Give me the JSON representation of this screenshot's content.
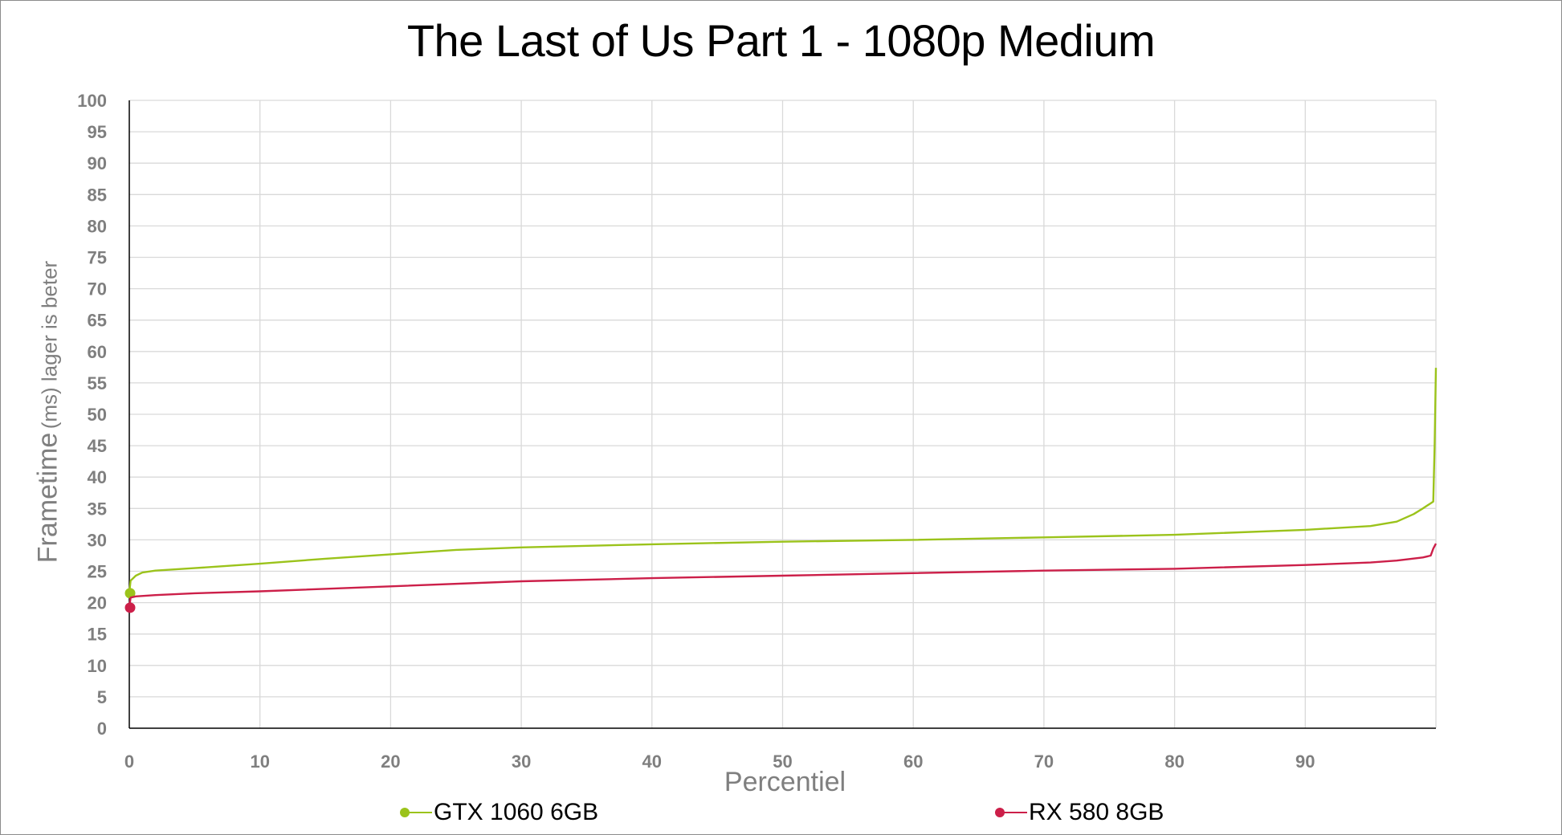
{
  "title": "The Last of Us Part 1 - 1080p Medium",
  "yaxis": {
    "title_main": "Frametime",
    "title_sub": "(ms) lager is beter",
    "ticks": [
      0,
      5,
      10,
      15,
      20,
      25,
      30,
      35,
      40,
      45,
      50,
      55,
      60,
      65,
      70,
      75,
      80,
      85,
      90,
      95,
      100
    ]
  },
  "xaxis": {
    "title": "Percentiel",
    "ticks": [
      0,
      10,
      20,
      30,
      40,
      50,
      60,
      70,
      80,
      90
    ]
  },
  "legend": [
    {
      "label": "GTX 1060 6GB",
      "color": "#9bc31b"
    },
    {
      "label": "RX 580 8GB",
      "color": "#cc1f49"
    }
  ],
  "chart_data": {
    "type": "line",
    "title": "The Last of Us Part 1 - 1080p Medium",
    "xlabel": "Percentiel",
    "ylabel": "Frametime (ms) lager is beter",
    "xlim": [
      0,
      100
    ],
    "ylim": [
      0,
      100
    ],
    "grid": true,
    "legend_position": "bottom",
    "series": [
      {
        "name": "GTX 1060 6GB",
        "color": "#9bc31b",
        "x": [
          0,
          0.1,
          0.5,
          1,
          2,
          5,
          10,
          15,
          20,
          25,
          30,
          40,
          50,
          60,
          70,
          80,
          90,
          95,
          97,
          98.3,
          99.0,
          99.8,
          99.9,
          100
        ],
        "y": [
          21.5,
          23.5,
          24.3,
          24.8,
          25.1,
          25.5,
          26.2,
          27.0,
          27.7,
          28.4,
          28.8,
          29.3,
          29.7,
          30.0,
          30.4,
          30.8,
          31.6,
          32.2,
          32.9,
          34.1,
          35.0,
          36.1,
          45,
          57.4
        ]
      },
      {
        "name": "RX 580 8GB",
        "color": "#cc1f49",
        "x": [
          0,
          0.1,
          0.5,
          2,
          5,
          10,
          20,
          30,
          40,
          50,
          60,
          70,
          80,
          90,
          95,
          97,
          99.0,
          99.6,
          99.8,
          100
        ],
        "y": [
          19.2,
          20.8,
          21.0,
          21.2,
          21.5,
          21.8,
          22.6,
          23.4,
          23.9,
          24.3,
          24.7,
          25.1,
          25.4,
          26.0,
          26.4,
          26.7,
          27.2,
          27.5,
          28.6,
          29.4
        ]
      }
    ]
  }
}
